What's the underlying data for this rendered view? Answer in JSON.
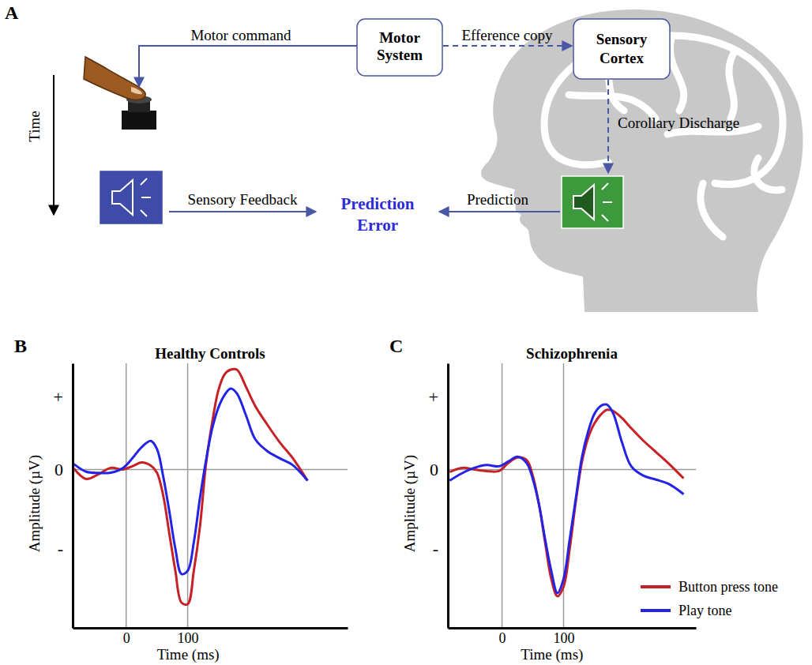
{
  "diagram": {
    "panel_label": "A",
    "motor_command": "Motor command",
    "motor_system": [
      "Motor",
      "System"
    ],
    "efference_copy": "Efference copy",
    "sensory_cortex": [
      "Sensory",
      "Cortex"
    ],
    "corollary_discharge": "Corollary Discharge",
    "sensory_feedback": "Sensory Feedback",
    "prediction_error": [
      "Prediction",
      "Error"
    ],
    "prediction": "Prediction",
    "time": "Time"
  },
  "chart_data": [
    {
      "type": "line",
      "panel_label": "B",
      "title": "Healthy Controls",
      "x_label": "Time (ms)",
      "y_label": "Amplitude (µV)",
      "x": [
        -85,
        -65,
        -45,
        -25,
        -5,
        10,
        25,
        40,
        50,
        60,
        70,
        80,
        90,
        100,
        110,
        120,
        130,
        140,
        150,
        160,
        170,
        180,
        195,
        210,
        230,
        250,
        270,
        295
      ],
      "series": [
        {
          "name": "Button press tone",
          "color": "#c62127",
          "values": [
            0.03,
            -0.3,
            -0.15,
            0.05,
            0.0,
            0.1,
            0.22,
            0.12,
            -0.1,
            -0.8,
            -2.0,
            -3.2,
            -4.2,
            -4.25,
            -3.2,
            -1.8,
            0.2,
            1.5,
            2.5,
            3.0,
            3.15,
            3.15,
            2.6,
            2.0,
            1.4,
            0.85,
            0.38,
            -0.35
          ]
        },
        {
          "name": "Play tone",
          "color": "#2323e6",
          "values": [
            0.17,
            -0.07,
            -0.11,
            -0.1,
            0.05,
            0.35,
            0.7,
            0.9,
            0.65,
            -0.2,
            -1.3,
            -2.5,
            -3.3,
            -3.2,
            -2.3,
            -0.9,
            0.3,
            1.3,
            1.95,
            2.35,
            2.55,
            2.4,
            1.7,
            0.95,
            0.57,
            0.35,
            0.15,
            -0.35
          ]
        }
      ],
      "xlim": [
        -87,
        360
      ],
      "ylim": [
        -5.0,
        3.35
      ],
      "xticks": [
        0,
        100
      ],
      "yticks": [
        {
          "value": 2.3,
          "label": "+"
        },
        0,
        {
          "value": -2.5,
          "label": "-"
        }
      ],
      "grid": true
    },
    {
      "type": "line",
      "panel_label": "C",
      "title": "Schizophrenia",
      "x_label": "Time (ms)",
      "y_label": "Amplitude (µV)",
      "x": [
        -85,
        -65,
        -45,
        -25,
        -5,
        10,
        25,
        40,
        50,
        60,
        70,
        80,
        90,
        100,
        110,
        120,
        130,
        140,
        150,
        160,
        170,
        180,
        195,
        210,
        230,
        250,
        270,
        295
      ],
      "series": [
        {
          "name": "Button press tone",
          "color": "#c62127",
          "values": [
            -0.08,
            0.05,
            0.0,
            -0.05,
            -0.05,
            0.2,
            0.38,
            0.3,
            -0.2,
            -1.1,
            -2.3,
            -3.45,
            -4.0,
            -3.7,
            -2.5,
            -1.0,
            0.25,
            1.0,
            1.45,
            1.72,
            1.88,
            1.85,
            1.62,
            1.3,
            0.9,
            0.55,
            0.2,
            -0.28
          ]
        },
        {
          "name": "Play tone",
          "color": "#2323e6",
          "values": [
            -0.35,
            -0.12,
            0.05,
            0.14,
            0.1,
            0.25,
            0.4,
            0.2,
            -0.3,
            -1.1,
            -2.2,
            -3.2,
            -3.9,
            -3.45,
            -2.2,
            -0.9,
            0.4,
            1.2,
            1.75,
            2.0,
            2.05,
            1.8,
            0.85,
            0.1,
            -0.2,
            -0.32,
            -0.45,
            -0.78
          ]
        }
      ],
      "xlim": [
        -88,
        315
      ],
      "ylim": [
        -5.0,
        3.35
      ],
      "xticks": [
        0,
        100
      ],
      "yticks": [
        {
          "value": 2.3,
          "label": "+"
        },
        0,
        {
          "value": -2.5,
          "label": "-"
        }
      ],
      "grid": true,
      "legend": "lower right"
    }
  ]
}
